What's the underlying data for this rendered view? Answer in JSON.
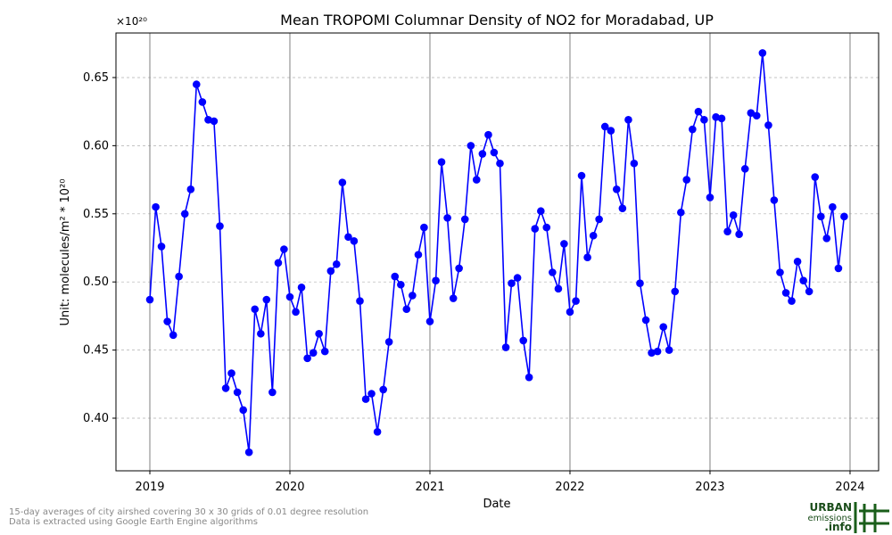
{
  "chart_data": {
    "type": "line",
    "title": "Mean TROPOMI Columnar Density of NO2 for Moradabad, UP",
    "x_label": "Date",
    "y_label": "Unit: molecules/m² * 10²⁰",
    "y_scale_label": "×10²⁰",
    "footnotes": [
      "15-day averages of city airshed covering 30 x 30 grids of 0.01 degree resolution",
      "Data is extracted using Google Earth Engine algorithms"
    ],
    "logo": [
      "URBAN",
      "emissions",
      ".info"
    ],
    "color": "#0000ff",
    "grid": true,
    "xlim": [
      2018.758,
      2024.204
    ],
    "xticks": [
      2019,
      2020,
      2021,
      2022,
      2023,
      2024
    ],
    "ylim": [
      0.3614,
      0.6827
    ],
    "yticks": [
      {
        "value": 0.4,
        "label": "0.40"
      },
      0.45,
      {
        "value": 0.5,
        "label": "0.50"
      },
      0.55,
      {
        "value": 0.6,
        "label": "0.60"
      },
      0.65
    ],
    "x": [
      2019.0,
      2019.042,
      2019.083,
      2019.125,
      2019.167,
      2019.208,
      2019.25,
      2019.292,
      2019.333,
      2019.375,
      2019.417,
      2019.458,
      2019.5,
      2019.542,
      2019.583,
      2019.625,
      2019.667,
      2019.708,
      2019.75,
      2019.792,
      2019.833,
      2019.875,
      2019.917,
      2019.958,
      2020.0,
      2020.042,
      2020.083,
      2020.125,
      2020.167,
      2020.208,
      2020.25,
      2020.292,
      2020.333,
      2020.375,
      2020.417,
      2020.458,
      2020.5,
      2020.542,
      2020.583,
      2020.625,
      2020.667,
      2020.708,
      2020.75,
      2020.792,
      2020.833,
      2020.875,
      2020.917,
      2020.958,
      2021.0,
      2021.042,
      2021.083,
      2021.125,
      2021.167,
      2021.208,
      2021.25,
      2021.292,
      2021.333,
      2021.375,
      2021.417,
      2021.458,
      2021.5,
      2021.542,
      2021.583,
      2021.625,
      2021.667,
      2021.708,
      2021.75,
      2021.792,
      2021.833,
      2021.875,
      2021.917,
      2021.958,
      2022.0,
      2022.042,
      2022.083,
      2022.125,
      2022.167,
      2022.208,
      2022.25,
      2022.292,
      2022.333,
      2022.375,
      2022.417,
      2022.458,
      2022.5,
      2022.542,
      2022.583,
      2022.625,
      2022.667,
      2022.708,
      2022.75,
      2022.792,
      2022.833,
      2022.875,
      2022.917,
      2022.958,
      2023.0,
      2023.042,
      2023.083,
      2023.125,
      2023.167,
      2023.208,
      2023.25,
      2023.292,
      2023.333,
      2023.375,
      2023.417,
      2023.458,
      2023.5,
      2023.542,
      2023.583,
      2023.625,
      2023.667,
      2023.708,
      2023.75,
      2023.792,
      2023.833,
      2023.875,
      2023.917,
      2023.958
    ],
    "values": [
      0.487,
      0.555,
      0.526,
      0.471,
      0.461,
      0.504,
      0.55,
      0.568,
      0.645,
      0.632,
      0.619,
      0.618,
      0.541,
      0.422,
      0.433,
      0.419,
      0.406,
      0.375,
      0.48,
      0.462,
      0.487,
      0.419,
      0.514,
      0.524,
      0.489,
      0.478,
      0.496,
      0.444,
      0.448,
      0.462,
      0.449,
      0.508,
      0.513,
      0.573,
      0.533,
      0.53,
      0.486,
      0.414,
      0.418,
      0.39,
      0.421,
      0.456,
      0.504,
      0.498,
      0.48,
      0.49,
      0.52,
      0.54,
      0.471,
      0.501,
      0.588,
      0.547,
      0.488,
      0.51,
      0.546,
      0.6,
      0.575,
      0.594,
      0.608,
      0.595,
      0.587,
      0.452,
      0.499,
      0.503,
      0.457,
      0.43,
      0.539,
      0.552,
      0.54,
      0.507,
      0.495,
      0.528,
      0.478,
      0.486,
      0.578,
      0.518,
      0.534,
      0.546,
      0.614,
      0.611,
      0.568,
      0.554,
      0.619,
      0.587,
      0.499,
      0.472,
      0.448,
      0.449,
      0.467,
      0.45,
      0.493,
      0.551,
      0.575,
      0.612,
      0.625,
      0.619,
      0.562,
      0.621,
      0.62,
      0.537,
      0.549,
      0.535,
      0.583,
      0.624,
      0.622,
      0.668,
      0.615,
      0.56,
      0.507,
      0.492,
      0.486,
      0.515,
      0.501,
      0.493,
      0.577,
      0.548,
      0.532,
      0.555,
      0.51,
      0.548
    ]
  }
}
